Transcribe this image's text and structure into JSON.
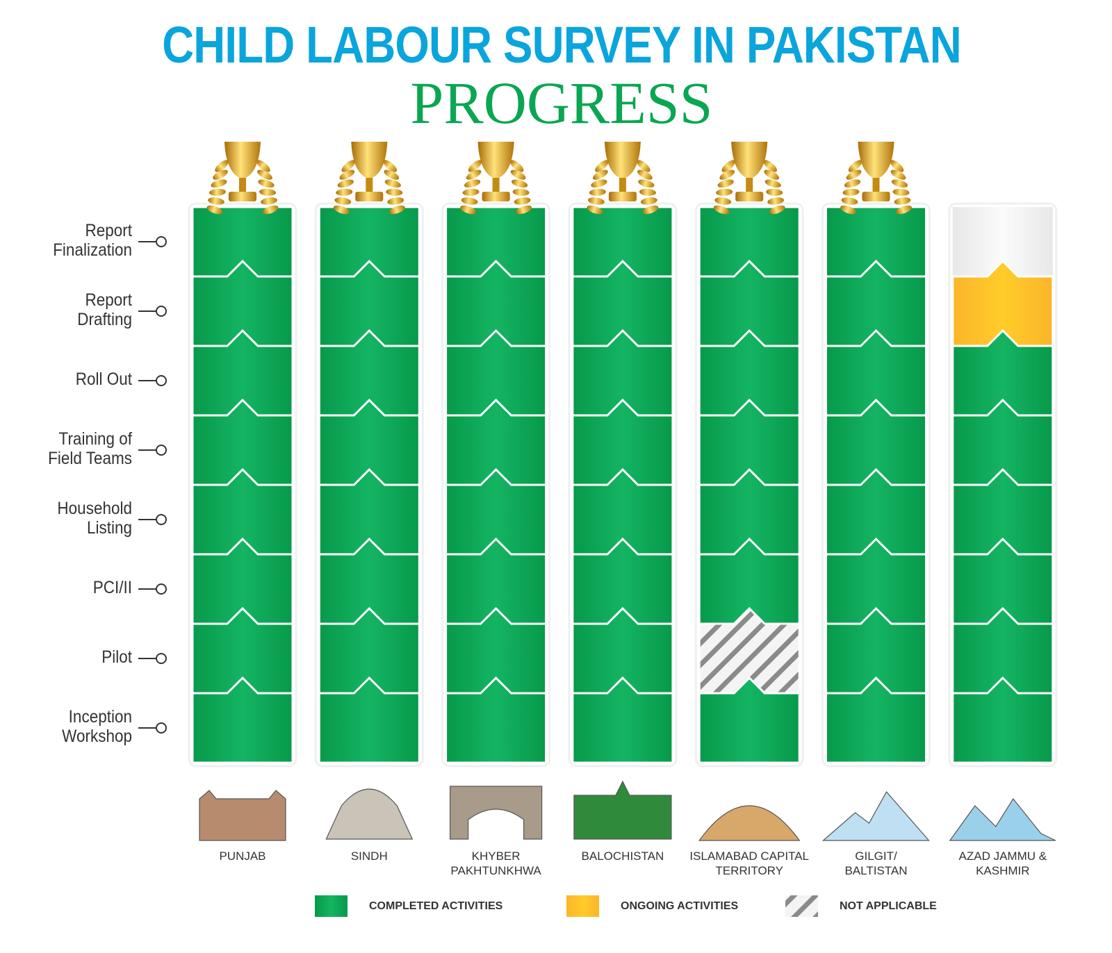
{
  "header": {
    "title": "CHILD LABOUR SURVEY IN PAKISTAN",
    "subtitle": "PROGRESS"
  },
  "colors": {
    "completed": "#0fa855",
    "ongoing": "#fdc72a",
    "not_applicable": "#bdbdbd",
    "pending": "#f2f2f2",
    "title": "#0aa5dc",
    "subtitle": "#0aa651"
  },
  "chart_data": {
    "type": "table",
    "title": "CHILD LABOUR SURVEY IN PAKISTAN PROGRESS",
    "rows": [
      "Report\nFinalization",
      "Report\nDrafting",
      "Roll Out",
      "Training of\nField Teams",
      "Household\nListing",
      "PCI/II",
      "Pilot",
      "Inception\nWorkshop"
    ],
    "columns": [
      {
        "name": "PUNJAB",
        "trophy": true,
        "status": [
          "completed",
          "completed",
          "completed",
          "completed",
          "completed",
          "completed",
          "completed",
          "completed"
        ]
      },
      {
        "name": "SINDH",
        "trophy": true,
        "status": [
          "completed",
          "completed",
          "completed",
          "completed",
          "completed",
          "completed",
          "completed",
          "completed"
        ]
      },
      {
        "name": "KHYBER\nPAKHTUNKHWA",
        "trophy": true,
        "status": [
          "completed",
          "completed",
          "completed",
          "completed",
          "completed",
          "completed",
          "completed",
          "completed"
        ]
      },
      {
        "name": "BALOCHISTAN",
        "trophy": true,
        "status": [
          "completed",
          "completed",
          "completed",
          "completed",
          "completed",
          "completed",
          "completed",
          "completed"
        ]
      },
      {
        "name": "ISLAMABAD CAPITAL\nTERRITORY",
        "trophy": true,
        "status": [
          "completed",
          "completed",
          "completed",
          "completed",
          "completed",
          "completed",
          "not_applicable",
          "completed"
        ]
      },
      {
        "name": "GILGIT/\nBALTISTAN",
        "trophy": true,
        "status": [
          "completed",
          "completed",
          "completed",
          "completed",
          "completed",
          "completed",
          "completed",
          "completed"
        ]
      },
      {
        "name": "AZAD JAMMU &\nKASHMIR",
        "trophy": false,
        "status": [
          "pending",
          "ongoing",
          "completed",
          "completed",
          "completed",
          "completed",
          "completed",
          "completed"
        ]
      }
    ],
    "legend": [
      {
        "key": "completed",
        "label": "COMPLETED ACTIVITIES"
      },
      {
        "key": "ongoing",
        "label": "ONGOING ACTIVITIES"
      },
      {
        "key": "not_applicable",
        "label": "NOT APPLICABLE"
      }
    ],
    "legend_position": "bottom"
  }
}
